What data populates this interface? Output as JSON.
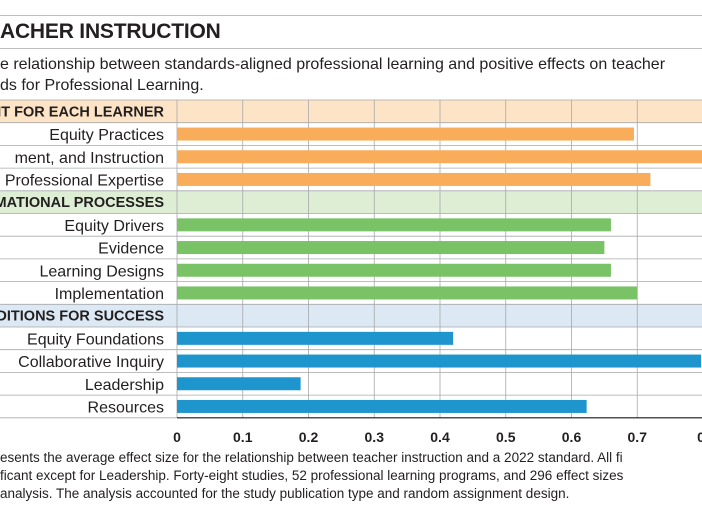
{
  "header": {
    "title": "ACHER INSTRUCTION",
    "subtitle_lines": [
      "e relationship between standards-aligned professional learning and positive effects on teacher",
      "ds for Professional Learning."
    ]
  },
  "footnote_lines": [
    "esents the average effect size for the relationship between teacher instruction and a 2022 standard. All fi",
    "ficant except for Leadership. Forty-eight studies, 52 professional learning programs, and 296 effect sizes",
    "analysis. The analysis accounted for the study publication type and random assignment design."
  ],
  "chart_data": {
    "type": "bar",
    "orientation": "horizontal",
    "x_ticks": [
      "0",
      "0.1",
      "0.2",
      "0.3",
      "0.4",
      "0.5",
      "0.6",
      "0.7",
      "0."
    ],
    "xlim": [
      0,
      0.8
    ],
    "grid": true,
    "groups": [
      {
        "name": "NT FOR EACH LEARNER",
        "band_color": "#fde4c6",
        "bar_color": "#f9ad5a",
        "categories": [
          "Equity Practices",
          "ment, and Instruction",
          "Professional Expertise"
        ],
        "values": [
          0.695,
          0.81,
          0.72
        ]
      },
      {
        "name": "MATIONAL  PROCESSES",
        "band_color": "#ddeed4",
        "bar_color": "#79c266",
        "categories": [
          "Equity Drivers",
          "Evidence",
          "Learning Designs",
          "Implementation"
        ],
        "values": [
          0.66,
          0.65,
          0.66,
          0.7
        ]
      },
      {
        "name": "DITIONS FOR SUCCESS",
        "band_color": "#dce8f3",
        "bar_color": "#1f95cd",
        "categories": [
          "Equity Foundations",
          " Collaborative Inquiry",
          "Leadership",
          "Resources"
        ],
        "values": [
          0.42,
          0.797,
          0.188,
          0.623
        ]
      }
    ]
  }
}
